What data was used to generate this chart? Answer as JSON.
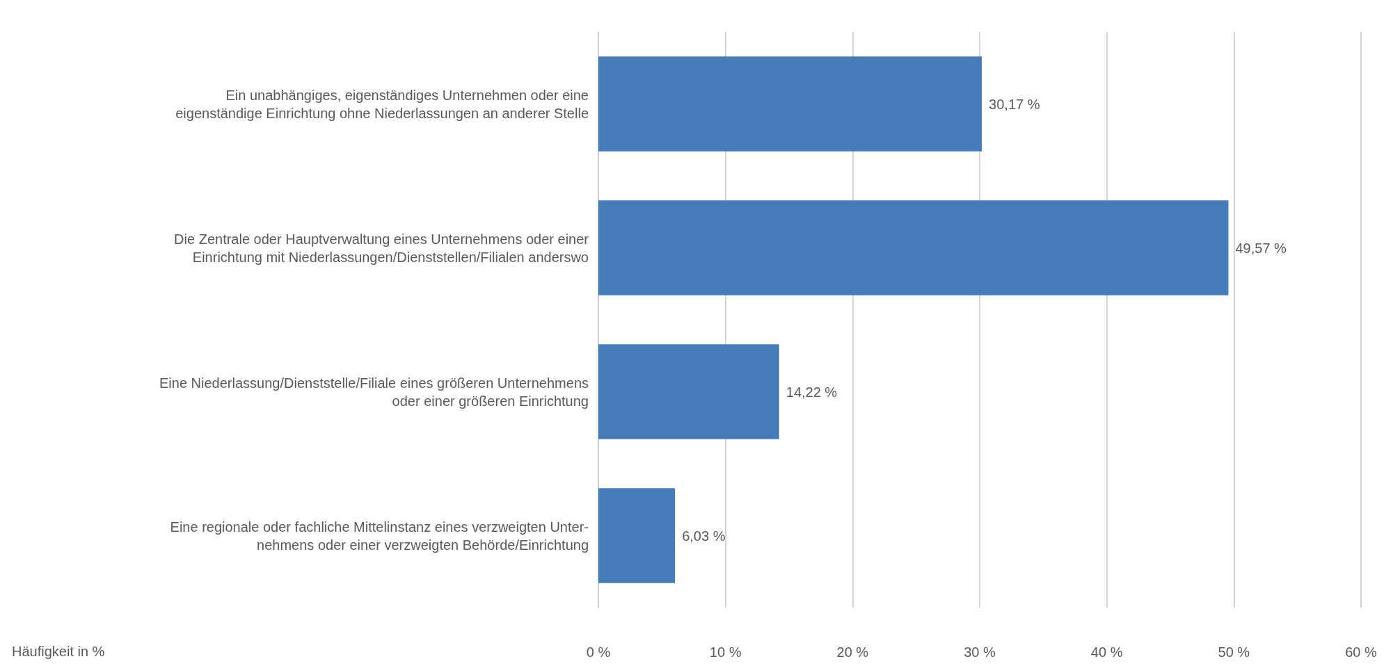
{
  "chart_data": {
    "type": "bar",
    "orientation": "horizontal",
    "xlabel": "Häufigkeit in %",
    "categories": [
      "Ein unabhängiges, eigenständiges Unternehmen oder eine\neigenständige Einrichtung ohne Niederlassungen an anderer Stelle",
      "Die Zentrale oder Hauptverwaltung eines Unternehmens oder einer\nEinrichtung mit Niederlassungen/Dienststellen/Filialen anderswo",
      "Eine Niederlassung/Dienststelle/Filiale eines größeren Unternehmens\noder einer größeren Einrichtung",
      "Eine regionale oder fachliche Mittelinstanz eines verzweigten Unter-\nnehmens oder einer verzweigten Behörde/Einrichtung"
    ],
    "values": [
      30.17,
      49.57,
      14.22,
      6.03
    ],
    "value_labels": [
      "30,17 %",
      "49,57 %",
      "14,22 %",
      "6,03 %"
    ],
    "color": "#477cb8",
    "xlim": [
      0,
      60
    ],
    "xticks": [
      {
        "value": 0,
        "label": "0 %"
      },
      {
        "value": 10,
        "label": "10 %"
      },
      {
        "value": 20,
        "label": "20 %"
      },
      {
        "value": 30,
        "label": "30 %"
      },
      {
        "value": 40,
        "label": "40 %"
      },
      {
        "value": 50,
        "label": "50 %"
      },
      {
        "value": 60,
        "label": "60 %"
      }
    ],
    "grid": "x"
  }
}
